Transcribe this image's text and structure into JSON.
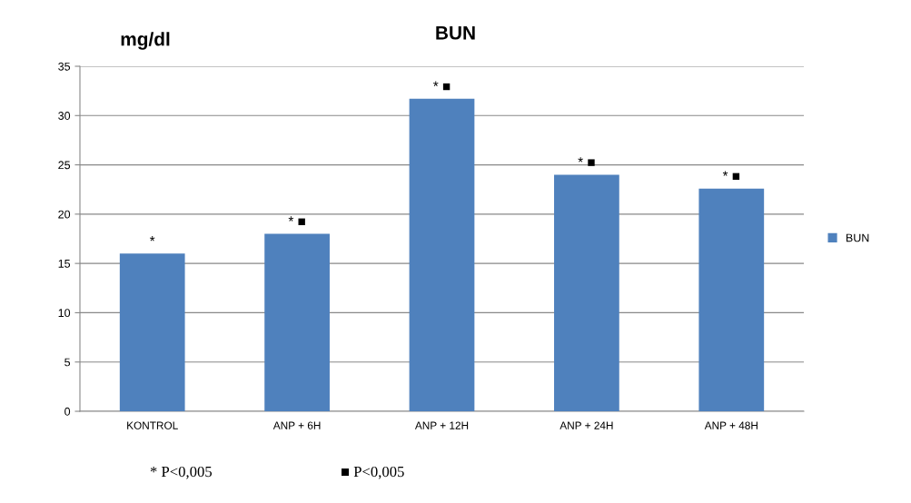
{
  "chart_data": {
    "type": "bar",
    "title": "BUN",
    "ylabel": "mg/dl",
    "categories": [
      "KONTROL",
      "ANP + 6H",
      "ANP + 12H",
      "ANP + 24H",
      "ANP + 48H"
    ],
    "series": [
      {
        "name": "BUN",
        "color": "#4f81bd",
        "values": [
          16,
          18,
          31.7,
          24,
          22.6
        ]
      }
    ],
    "ylim": [
      0,
      35
    ],
    "yticks": [
      0,
      5,
      10,
      15,
      20,
      25,
      30,
      35
    ],
    "grid": "y",
    "legend": "right",
    "annotations": [
      {
        "text": "*",
        "x": "KONTROL",
        "y": 16
      },
      {
        "text": "* ■",
        "x": "ANP + 6H",
        "y": 18
      },
      {
        "text": "* ■",
        "x": "ANP + 12H",
        "y": 31.7
      },
      {
        "text": "* ■",
        "x": "ANP + 24H",
        "y": 24
      },
      {
        "text": "* ■",
        "x": "ANP + 48H",
        "y": 22.6
      },
      "* P<0,005",
      "■ P<0,005"
    ]
  }
}
